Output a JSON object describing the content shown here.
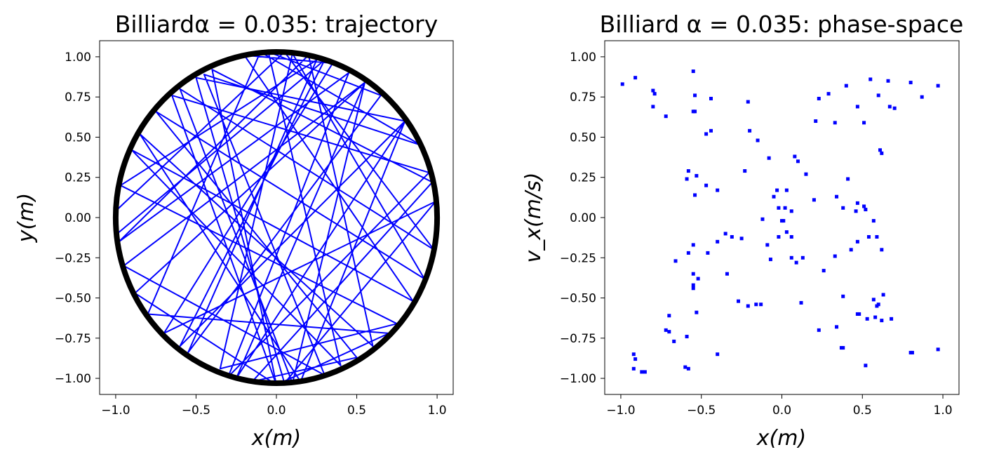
{
  "chart_data": [
    {
      "type": "line",
      "title": "Billiardα = 0.035: trajectory",
      "xlabel": "x(m)",
      "ylabel": "y(m)",
      "xlim": [
        -1.1,
        1.1
      ],
      "ylim": [
        -1.1,
        1.1
      ],
      "xticks": [
        -1.0,
        -0.5,
        0.0,
        0.5,
        1.0
      ],
      "xtick_labels": [
        "−1.0",
        "−0.5",
        "0.0",
        "0.5",
        "1.0"
      ],
      "yticks": [
        1.0,
        0.75,
        0.5,
        0.25,
        0.0,
        -0.25,
        -0.5,
        -0.75,
        -1.0
      ],
      "ytick_labels": [
        "1.00",
        "0.75",
        "0.50",
        "0.25",
        "0.00",
        "−0.25",
        "−0.50",
        "−0.75",
        "−1.00"
      ],
      "grid": false,
      "series": [
        {
          "color": "#0000ff",
          "x": [
            -0.99,
            0.05,
            0.98,
            -0.6,
            0.1,
            0.55,
            -0.95,
            0.3,
            -0.45,
            0.9,
            -0.1,
            -0.8,
            0.7,
            0.0,
            -0.65,
            0.95,
            -0.3,
            0.45,
            -0.98,
            0.2,
            0.6,
            -0.85,
            0.15,
            0.8,
            -0.5,
            0.05,
            0.99,
            -0.7,
            0.35,
            -0.2,
            0.85,
            -0.9,
            0.4,
            -0.05,
            0.65,
            -0.55,
            0.25,
            -0.97,
            0.75,
            -0.35,
            0.1,
            0.92,
            -0.75,
            0.5,
            -0.15,
            0.97,
            -0.4,
            0.0,
            -0.88,
            0.55,
            -0.25,
            0.8,
            -0.6,
            0.3,
            -0.99
          ],
          "y": [
            0.05,
            1.03,
            -0.2,
            0.8,
            -1.03,
            0.84,
            -0.3,
            -0.98,
            0.89,
            0.45,
            1.03,
            -0.6,
            -0.72,
            -1.04,
            0.76,
            0.28,
            -0.99,
            0.9,
            -0.15,
            1.01,
            -0.8,
            0.52,
            -1.02,
            0.6,
            0.87,
            -1.03,
            0.1,
            -0.72,
            0.96,
            1.01,
            -0.52,
            0.42,
            -0.92,
            1.03,
            0.76,
            -0.84,
            0.98,
            0.2,
            -0.66,
            -0.94,
            1.02,
            -0.38,
            0.66,
            -0.87,
            -1.02,
            0.22,
            0.92,
            -1.04,
            -0.47,
            0.84,
            -1.0,
            0.6,
            -0.8,
            0.98,
            -0.1
          ],
          "note_shape": "closed boundary"
        }
      ],
      "boundary": {
        "shape": "circle",
        "color": "#000000",
        "x_radius": 1.0,
        "y_radius": 1.03
      }
    },
    {
      "type": "scatter",
      "title": "Billiard α = 0.035: phase-space",
      "xlabel": "x(m)",
      "ylabel": "v_x(m/s)",
      "xlim": [
        -1.1,
        1.1
      ],
      "ylim": [
        -1.1,
        1.1
      ],
      "xticks": [
        -1.0,
        -0.5,
        0.0,
        0.5,
        1.0
      ],
      "xtick_labels": [
        "−1.0",
        "−0.5",
        "0.0",
        "0.5",
        "1.0"
      ],
      "yticks": [
        1.0,
        0.75,
        0.5,
        0.25,
        0.0,
        -0.25,
        -0.5,
        -0.75,
        -1.0
      ],
      "ytick_labels": [
        "1.00",
        "0.75",
        "0.50",
        "0.25",
        "0.00",
        "−0.25",
        "−0.50",
        "−0.75",
        "−1.00"
      ],
      "grid": false,
      "series": [
        {
          "color": "#0000ff",
          "points": [
            [
              -0.99,
              0.83
            ],
            [
              -0.91,
              0.87
            ],
            [
              -0.8,
              0.79
            ],
            [
              -0.79,
              0.77
            ],
            [
              -0.8,
              0.69
            ],
            [
              -0.72,
              0.63
            ],
            [
              -0.55,
              0.91
            ],
            [
              -0.54,
              0.76
            ],
            [
              -0.55,
              0.66
            ],
            [
              -0.54,
              0.66
            ],
            [
              -0.47,
              0.52
            ],
            [
              -0.44,
              0.54
            ],
            [
              -0.44,
              0.74
            ],
            [
              -0.21,
              0.72
            ],
            [
              -0.2,
              0.54
            ],
            [
              -0.15,
              0.48
            ],
            [
              -0.23,
              0.29
            ],
            [
              -0.08,
              0.37
            ],
            [
              0.08,
              0.38
            ],
            [
              0.1,
              0.35
            ],
            [
              0.15,
              0.27
            ],
            [
              0.21,
              0.6
            ],
            [
              0.23,
              0.74
            ],
            [
              0.29,
              0.77
            ],
            [
              0.33,
              0.59
            ],
            [
              0.4,
              0.82
            ],
            [
              0.47,
              0.69
            ],
            [
              0.51,
              0.59
            ],
            [
              0.55,
              0.86
            ],
            [
              0.6,
              0.76
            ],
            [
              0.66,
              0.85
            ],
            [
              0.67,
              0.69
            ],
            [
              0.7,
              0.68
            ],
            [
              0.8,
              0.84
            ],
            [
              0.87,
              0.75
            ],
            [
              0.97,
              0.82
            ],
            [
              0.61,
              0.42
            ],
            [
              0.62,
              0.4
            ],
            [
              -0.58,
              0.29
            ],
            [
              -0.59,
              0.24
            ],
            [
              -0.53,
              0.26
            ],
            [
              -0.47,
              0.2
            ],
            [
              -0.4,
              0.17
            ],
            [
              -0.54,
              0.14
            ],
            [
              0.2,
              0.11
            ],
            [
              0.34,
              0.13
            ],
            [
              0.38,
              0.06
            ],
            [
              0.41,
              0.24
            ],
            [
              0.46,
              0.04
            ],
            [
              0.47,
              0.09
            ],
            [
              0.51,
              0.07
            ],
            [
              0.52,
              0.05
            ],
            [
              0.57,
              -0.02
            ],
            [
              -0.03,
              0.17
            ],
            [
              0.03,
              0.17
            ],
            [
              -0.05,
              0.13
            ],
            [
              -0.02,
              0.06
            ],
            [
              0.02,
              0.06
            ],
            [
              0.06,
              0.04
            ],
            [
              -0.12,
              -0.01
            ],
            [
              0.0,
              -0.02
            ],
            [
              0.01,
              -0.02
            ],
            [
              -0.02,
              -0.12
            ],
            [
              0.03,
              -0.09
            ],
            [
              0.06,
              -0.12
            ],
            [
              -0.09,
              -0.17
            ],
            [
              -0.07,
              -0.26
            ],
            [
              0.09,
              -0.28
            ],
            [
              0.06,
              -0.25
            ],
            [
              0.13,
              -0.25
            ],
            [
              -0.35,
              -0.1
            ],
            [
              -0.31,
              -0.12
            ],
            [
              -0.25,
              -0.13
            ],
            [
              -0.4,
              -0.15
            ],
            [
              -0.46,
              -0.22
            ],
            [
              -0.55,
              -0.17
            ],
            [
              -0.58,
              -0.22
            ],
            [
              -0.66,
              -0.27
            ],
            [
              -0.34,
              -0.35
            ],
            [
              -0.55,
              -0.35
            ],
            [
              -0.52,
              -0.38
            ],
            [
              -0.55,
              -0.42
            ],
            [
              -0.55,
              -0.44
            ],
            [
              0.26,
              -0.33
            ],
            [
              0.33,
              -0.24
            ],
            [
              0.43,
              -0.2
            ],
            [
              0.47,
              -0.15
            ],
            [
              0.54,
              -0.12
            ],
            [
              0.59,
              -0.12
            ],
            [
              0.62,
              -0.2
            ],
            [
              0.38,
              -0.49
            ],
            [
              0.12,
              -0.53
            ],
            [
              -0.13,
              -0.54
            ],
            [
              -0.16,
              -0.54
            ],
            [
              -0.21,
              -0.55
            ],
            [
              -0.27,
              -0.52
            ],
            [
              -0.53,
              -0.59
            ],
            [
              -0.7,
              -0.61
            ],
            [
              -0.72,
              -0.7
            ],
            [
              -0.7,
              -0.71
            ],
            [
              -0.67,
              -0.77
            ],
            [
              -0.59,
              -0.74
            ],
            [
              -0.4,
              -0.85
            ],
            [
              -0.6,
              -0.93
            ],
            [
              -0.58,
              -0.94
            ],
            [
              -0.92,
              -0.85
            ],
            [
              -0.91,
              -0.88
            ],
            [
              -0.92,
              -0.94
            ],
            [
              -0.87,
              -0.96
            ],
            [
              -0.85,
              -0.96
            ],
            [
              0.23,
              -0.7
            ],
            [
              0.34,
              -0.68
            ],
            [
              0.37,
              -0.81
            ],
            [
              0.38,
              -0.81
            ],
            [
              0.47,
              -0.6
            ],
            [
              0.48,
              -0.6
            ],
            [
              0.53,
              -0.63
            ],
            [
              0.52,
              -0.92
            ],
            [
              0.57,
              -0.51
            ],
            [
              0.59,
              -0.55
            ],
            [
              0.6,
              -0.54
            ],
            [
              0.58,
              -0.62
            ],
            [
              0.62,
              -0.64
            ],
            [
              0.63,
              -0.48
            ],
            [
              0.68,
              -0.63
            ],
            [
              0.8,
              -0.84
            ],
            [
              0.81,
              -0.84
            ],
            [
              0.97,
              -0.82
            ]
          ]
        }
      ]
    }
  ]
}
